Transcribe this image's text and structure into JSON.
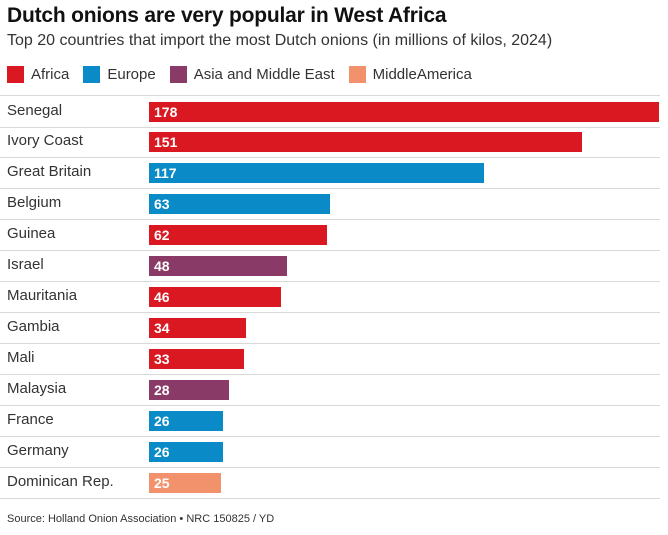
{
  "title": "Dutch onions are very popular in West Africa",
  "subtitle": "Top 20 countries that import the most Dutch onions (in millions of kilos, 2024)",
  "legend": [
    {
      "label": "Africa",
      "color": "#d91821"
    },
    {
      "label": "Europe",
      "color": "#0a8ac6"
    },
    {
      "label": "Asia and Middle East",
      "color": "#8a3a66"
    },
    {
      "label": "MiddleAmerica",
      "color": "#f2926c"
    }
  ],
  "source": "Source: Holland Onion Association • NRC 150825 / YD",
  "chart_data": {
    "type": "bar",
    "orientation": "horizontal",
    "title": "Dutch onions are very popular in West Africa",
    "subtitle": "Top 20 countries that import the most Dutch onions (in millions of kilos, 2024)",
    "xlim": [
      0,
      178
    ],
    "grid": false,
    "legend_position": "top-left",
    "categories": [
      "Senegal",
      "Ivory Coast",
      "Great Britain",
      "Belgium",
      "Guinea",
      "Israel",
      "Mauritania",
      "Gambia",
      "Mali",
      "Malaysia",
      "France",
      "Germany",
      "Dominican Rep."
    ],
    "values": [
      178,
      151,
      117,
      63,
      62,
      48,
      46,
      34,
      33,
      28,
      26,
      26,
      25
    ],
    "groups": [
      "Africa",
      "Africa",
      "Europe",
      "Europe",
      "Africa",
      "Asia and Middle East",
      "Africa",
      "Africa",
      "Africa",
      "Asia and Middle East",
      "Europe",
      "Europe",
      "MiddleAmerica"
    ]
  }
}
